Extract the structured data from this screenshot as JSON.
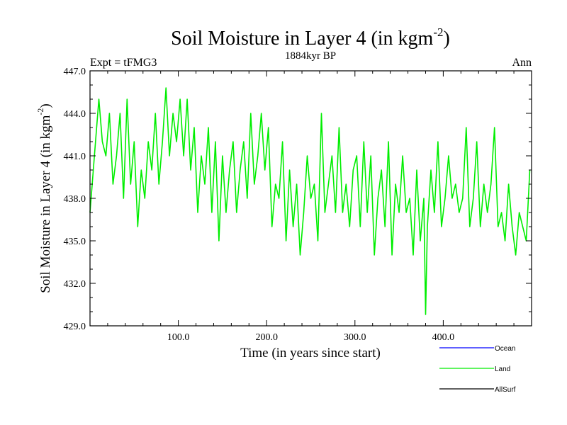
{
  "chart_data": {
    "type": "line",
    "title": "Soil Moisture in Layer 4 (in kgm",
    "title_sup": "-2",
    "title_close": ")",
    "subtitle": "1884kyr BP",
    "left_label": "Expt = tFMG3",
    "right_label": "Ann",
    "xlabel": "Time (in years since start)",
    "ylabel": "Soil Moisture in Layer 4 (in kgm",
    "ylabel_sup": "-2",
    "ylabel_close": ")",
    "xlim": [
      0,
      500
    ],
    "ylim": [
      429,
      447
    ],
    "xticks": [
      {
        "value": 100,
        "label": "100.0"
      },
      {
        "value": 200,
        "label": "200.0"
      },
      {
        "value": 300,
        "label": "300.0"
      },
      {
        "value": 400,
        "label": "400.0"
      }
    ],
    "yticks": [
      {
        "value": 429,
        "label": "429.0"
      },
      {
        "value": 432,
        "label": "432.0"
      },
      {
        "value": 435,
        "label": "435.0"
      },
      {
        "value": 438,
        "label": "438.0"
      },
      {
        "value": 441,
        "label": "441.0"
      },
      {
        "value": 444,
        "label": "444.0"
      },
      {
        "value": 447,
        "label": "447.0"
      }
    ],
    "legend": [
      {
        "name": "Ocean",
        "color": "#0000ff"
      },
      {
        "name": "Land",
        "color": "#00ee00"
      },
      {
        "name": "AllSurf",
        "color": "#000000"
      }
    ],
    "series": [
      {
        "name": "Land",
        "color": "#00ee00",
        "x": [
          0,
          5,
          10,
          14,
          18,
          22,
          26,
          30,
          34,
          38,
          42,
          46,
          50,
          54,
          58,
          62,
          66,
          70,
          74,
          78,
          82,
          86,
          90,
          94,
          98,
          102,
          106,
          110,
          114,
          118,
          122,
          126,
          130,
          134,
          138,
          142,
          146,
          150,
          154,
          158,
          162,
          166,
          170,
          174,
          178,
          182,
          186,
          190,
          194,
          198,
          202,
          206,
          210,
          214,
          218,
          222,
          226,
          230,
          234,
          238,
          242,
          246,
          250,
          254,
          258,
          262,
          266,
          270,
          274,
          278,
          282,
          286,
          290,
          294,
          298,
          302,
          306,
          310,
          314,
          318,
          322,
          326,
          330,
          334,
          338,
          342,
          346,
          350,
          354,
          358,
          362,
          366,
          370,
          374,
          378,
          380,
          382,
          386,
          390,
          394,
          398,
          402,
          406,
          410,
          414,
          418,
          422,
          426,
          430,
          434,
          438,
          442,
          446,
          450,
          454,
          458,
          462,
          466,
          470,
          474,
          478,
          482,
          486,
          490,
          494,
          498
        ],
        "values": [
          437,
          441,
          445,
          442,
          441,
          444,
          439,
          441,
          444,
          438,
          445,
          439,
          442,
          436,
          440,
          438,
          442,
          440,
          444,
          439,
          442,
          445.8,
          441,
          444,
          442,
          445,
          441,
          445,
          440,
          443,
          437,
          441,
          439,
          443,
          437,
          442,
          435,
          441,
          437,
          440,
          442,
          437,
          440,
          442,
          438,
          444,
          439,
          441,
          444,
          440,
          443,
          436,
          439,
          438,
          442,
          435,
          440,
          436,
          439,
          434,
          437,
          441,
          438,
          439,
          435,
          444,
          437,
          439,
          441,
          437,
          443,
          437,
          439,
          436,
          440,
          441,
          436,
          442,
          437,
          441,
          434,
          438,
          440,
          436,
          442,
          434,
          439,
          437,
          441,
          437,
          438,
          434,
          440,
          435,
          438,
          429.8,
          436,
          440,
          437,
          442,
          436,
          438,
          441,
          438,
          439,
          437,
          438,
          443,
          436,
          438,
          442,
          436,
          439,
          437,
          439,
          443,
          436,
          437,
          435,
          439,
          436,
          434,
          437,
          436,
          435,
          440
        ]
      }
    ]
  }
}
